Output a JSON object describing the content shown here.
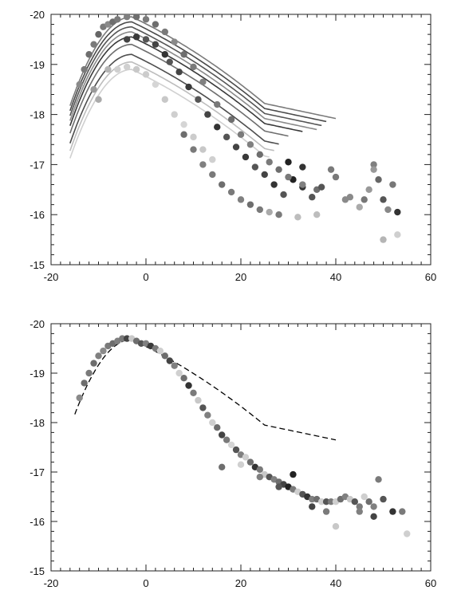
{
  "chart_data": [
    {
      "type": "scatter",
      "title": "",
      "xlabel": "",
      "ylabel": "",
      "xlim": [
        -20,
        60
      ],
      "ylim": [
        -20,
        -15
      ],
      "y_inverted": true,
      "grid": false,
      "x_ticks": [
        -20,
        0,
        20,
        40,
        60
      ],
      "y_ticks": [
        -20,
        -19,
        -18,
        -17,
        -16,
        -15
      ],
      "tick_labels_x": [
        "-20",
        "0",
        "20",
        "40",
        "60"
      ],
      "tick_labels_y": [
        "-20",
        "-19",
        "-18",
        "-17",
        "-16",
        "-15"
      ],
      "series_curves": [
        {
          "peak": -19.95,
          "color": "#7a7a7a",
          "end": 40
        },
        {
          "peak": -19.85,
          "color": "#4a4a4a",
          "end": 38
        },
        {
          "peak": -19.75,
          "color": "#555555",
          "end": 37
        },
        {
          "peak": -19.65,
          "color": "#8a8a8a",
          "end": 36
        },
        {
          "peak": -19.55,
          "color": "#3a3a3a",
          "end": 33
        },
        {
          "peak": -19.4,
          "color": "#6e6e6e",
          "end": 30
        },
        {
          "peak": -19.2,
          "color": "#4d4d4d",
          "end": 28
        },
        {
          "peak": -19.05,
          "color": "#bdbdbd",
          "end": 27
        },
        {
          "peak": -18.9,
          "color": "#d0d0d0",
          "end": 26
        }
      ],
      "points": [
        {
          "x": -14,
          "y": -18.6,
          "c": "#8a8a8a"
        },
        {
          "x": -13,
          "y": -18.9,
          "c": "#7a7a7a"
        },
        {
          "x": -12,
          "y": -19.2,
          "c": "#6e6e6e"
        },
        {
          "x": -11,
          "y": -19.4,
          "c": "#7a7a7a"
        },
        {
          "x": -10,
          "y": -19.6,
          "c": "#666666"
        },
        {
          "x": -9,
          "y": -19.75,
          "c": "#7a7a7a"
        },
        {
          "x": -8,
          "y": -19.8,
          "c": "#8a8a8a"
        },
        {
          "x": -7,
          "y": -19.85,
          "c": "#6e6e6e"
        },
        {
          "x": -6,
          "y": -19.9,
          "c": "#7a7a7a"
        },
        {
          "x": -4,
          "y": -19.95,
          "c": "#808080"
        },
        {
          "x": -2,
          "y": -19.95,
          "c": "#6e6e6e"
        },
        {
          "x": 0,
          "y": -19.9,
          "c": "#7a7a7a"
        },
        {
          "x": 2,
          "y": -19.8,
          "c": "#6e6e6e"
        },
        {
          "x": 4,
          "y": -19.65,
          "c": "#7a7a7a"
        },
        {
          "x": 6,
          "y": -19.45,
          "c": "#8a8a8a"
        },
        {
          "x": 8,
          "y": -19.2,
          "c": "#6e6e6e"
        },
        {
          "x": 10,
          "y": -18.95,
          "c": "#7a7a7a"
        },
        {
          "x": 12,
          "y": -18.65,
          "c": "#808080"
        },
        {
          "x": -11,
          "y": -18.5,
          "c": "#9a9a9a"
        },
        {
          "x": -10,
          "y": -18.3,
          "c": "#aaaaaa"
        },
        {
          "x": -8,
          "y": -18.9,
          "c": "#b5b5b5"
        },
        {
          "x": -6,
          "y": -18.9,
          "c": "#cfcfcf"
        },
        {
          "x": -4,
          "y": -18.95,
          "c": "#d0d0d0"
        },
        {
          "x": -2,
          "y": -18.9,
          "c": "#c8c8c8"
        },
        {
          "x": 0,
          "y": -18.8,
          "c": "#cccccc"
        },
        {
          "x": 2,
          "y": -18.6,
          "c": "#d5d5d5"
        },
        {
          "x": 4,
          "y": -18.3,
          "c": "#c8c8c8"
        },
        {
          "x": 6,
          "y": -18.0,
          "c": "#cfcfcf"
        },
        {
          "x": 8,
          "y": -17.8,
          "c": "#d5d5d5"
        },
        {
          "x": 10,
          "y": -17.55,
          "c": "#cccccc"
        },
        {
          "x": 12,
          "y": -17.3,
          "c": "#c8c8c8"
        },
        {
          "x": 14,
          "y": -17.1,
          "c": "#d0d0d0"
        },
        {
          "x": -4,
          "y": -19.5,
          "c": "#444444"
        },
        {
          "x": -2,
          "y": -19.55,
          "c": "#3a3a3a"
        },
        {
          "x": 0,
          "y": -19.5,
          "c": "#555555"
        },
        {
          "x": 2,
          "y": -19.4,
          "c": "#444444"
        },
        {
          "x": 4,
          "y": -19.2,
          "c": "#333333"
        },
        {
          "x": 5,
          "y": -19.05,
          "c": "#555555"
        },
        {
          "x": 7,
          "y": -18.85,
          "c": "#444444"
        },
        {
          "x": 9,
          "y": -18.55,
          "c": "#3a3a3a"
        },
        {
          "x": 11,
          "y": -18.3,
          "c": "#555555"
        },
        {
          "x": 13,
          "y": -18.0,
          "c": "#444444"
        },
        {
          "x": 15,
          "y": -17.75,
          "c": "#333333"
        },
        {
          "x": 17,
          "y": -17.55,
          "c": "#555555"
        },
        {
          "x": 19,
          "y": -17.35,
          "c": "#444444"
        },
        {
          "x": 21,
          "y": -17.15,
          "c": "#3a3a3a"
        },
        {
          "x": 23,
          "y": -16.95,
          "c": "#555555"
        },
        {
          "x": 25,
          "y": -16.8,
          "c": "#444444"
        },
        {
          "x": 27,
          "y": -16.6,
          "c": "#333333"
        },
        {
          "x": 29,
          "y": -16.4,
          "c": "#555555"
        },
        {
          "x": 31,
          "y": -16.7,
          "c": "#222222"
        },
        {
          "x": 33,
          "y": -16.55,
          "c": "#333333"
        },
        {
          "x": 35,
          "y": -16.35,
          "c": "#555555"
        },
        {
          "x": 15,
          "y": -18.2,
          "c": "#7a7a7a"
        },
        {
          "x": 18,
          "y": -17.9,
          "c": "#6e6e6e"
        },
        {
          "x": 20,
          "y": -17.6,
          "c": "#7a7a7a"
        },
        {
          "x": 22,
          "y": -17.4,
          "c": "#808080"
        },
        {
          "x": 24,
          "y": -17.2,
          "c": "#6e6e6e"
        },
        {
          "x": 26,
          "y": -17.05,
          "c": "#7a7a7a"
        },
        {
          "x": 28,
          "y": -16.9,
          "c": "#6e6e6e"
        },
        {
          "x": 30,
          "y": -16.75,
          "c": "#7a7a7a"
        },
        {
          "x": 33,
          "y": -16.6,
          "c": "#808080"
        },
        {
          "x": 36,
          "y": -16.5,
          "c": "#6e6e6e"
        },
        {
          "x": 39,
          "y": -16.9,
          "c": "#7a7a7a"
        },
        {
          "x": 42,
          "y": -16.3,
          "c": "#8a8a8a"
        },
        {
          "x": 30,
          "y": -17.05,
          "c": "#222222"
        },
        {
          "x": 33,
          "y": -16.95,
          "c": "#333333"
        },
        {
          "x": 37,
          "y": -16.55,
          "c": "#555555"
        },
        {
          "x": 40,
          "y": -16.75,
          "c": "#7a7a7a"
        },
        {
          "x": 43,
          "y": -16.35,
          "c": "#8a8a8a"
        },
        {
          "x": 45,
          "y": -16.15,
          "c": "#aaaaaa"
        },
        {
          "x": 46,
          "y": -16.3,
          "c": "#777777"
        },
        {
          "x": 47,
          "y": -16.5,
          "c": "#999999"
        },
        {
          "x": 48,
          "y": -17.0,
          "c": "#808080"
        },
        {
          "x": 49,
          "y": -16.7,
          "c": "#666666"
        },
        {
          "x": 50,
          "y": -16.3,
          "c": "#555555"
        },
        {
          "x": 51,
          "y": -16.1,
          "c": "#888888"
        },
        {
          "x": 52,
          "y": -16.6,
          "c": "#777777"
        },
        {
          "x": 53,
          "y": -16.05,
          "c": "#333333"
        },
        {
          "x": 50,
          "y": -15.5,
          "c": "#b5b5b5"
        },
        {
          "x": 53,
          "y": -15.6,
          "c": "#cfcfcf"
        },
        {
          "x": 48,
          "y": -16.9,
          "c": "#999999"
        },
        {
          "x": 8,
          "y": -17.6,
          "c": "#6e6e6e"
        },
        {
          "x": 10,
          "y": -17.3,
          "c": "#7a7a7a"
        },
        {
          "x": 12,
          "y": -17.0,
          "c": "#808080"
        },
        {
          "x": 14,
          "y": -16.8,
          "c": "#7a7a7a"
        },
        {
          "x": 16,
          "y": -16.6,
          "c": "#6e6e6e"
        },
        {
          "x": 18,
          "y": -16.45,
          "c": "#7a7a7a"
        },
        {
          "x": 20,
          "y": -16.3,
          "c": "#808080"
        },
        {
          "x": 22,
          "y": -16.2,
          "c": "#6e6e6e"
        },
        {
          "x": 24,
          "y": -16.1,
          "c": "#7a7a7a"
        },
        {
          "x": 26,
          "y": -16.05,
          "c": "#aaaaaa"
        },
        {
          "x": 28,
          "y": -16.0,
          "c": "#7a7a7a"
        },
        {
          "x": 32,
          "y": -15.95,
          "c": "#bdbdbd"
        },
        {
          "x": 36,
          "y": -16.0,
          "c": "#bdbdbd"
        }
      ]
    },
    {
      "type": "scatter",
      "title": "",
      "xlabel": "",
      "ylabel": "",
      "xlim": [
        -20,
        60
      ],
      "ylim": [
        -20,
        -15
      ],
      "y_inverted": true,
      "grid": false,
      "x_ticks": [
        -20,
        0,
        20,
        40,
        60
      ],
      "y_ticks": [
        -20,
        -19,
        -18,
        -17,
        -16,
        -15
      ],
      "tick_labels_x": [
        "-20",
        "0",
        "20",
        "40",
        "60"
      ],
      "tick_labels_y": [
        "-20",
        "-19",
        "-18",
        "-17",
        "-16",
        "-15"
      ],
      "template_curve": {
        "style": "dashed",
        "color": "#000000",
        "x_from": -15,
        "x_to": 40
      },
      "points": [
        {
          "x": -14,
          "y": -18.5,
          "c": "#8a8a8a"
        },
        {
          "x": -13,
          "y": -18.8,
          "c": "#6e6e6e"
        },
        {
          "x": -12,
          "y": -19.0,
          "c": "#7a7a7a"
        },
        {
          "x": -11,
          "y": -19.2,
          "c": "#6e6e6e"
        },
        {
          "x": -10,
          "y": -19.35,
          "c": "#808080"
        },
        {
          "x": -9,
          "y": -19.45,
          "c": "#8a8a8a"
        },
        {
          "x": -8,
          "y": -19.55,
          "c": "#7a7a7a"
        },
        {
          "x": -7,
          "y": -19.6,
          "c": "#6e6e6e"
        },
        {
          "x": -6,
          "y": -19.65,
          "c": "#808080"
        },
        {
          "x": -5,
          "y": -19.7,
          "c": "#7a7a7a"
        },
        {
          "x": -4,
          "y": -19.7,
          "c": "#444444"
        },
        {
          "x": -3,
          "y": -19.7,
          "c": "#c8c8c8"
        },
        {
          "x": -2,
          "y": -19.65,
          "c": "#6e6e6e"
        },
        {
          "x": -1,
          "y": -19.6,
          "c": "#555555"
        },
        {
          "x": 0,
          "y": -19.6,
          "c": "#808080"
        },
        {
          "x": 1,
          "y": -19.55,
          "c": "#3a3a3a"
        },
        {
          "x": 2,
          "y": -19.5,
          "c": "#7a7a7a"
        },
        {
          "x": 3,
          "y": -19.45,
          "c": "#cfcfcf"
        },
        {
          "x": 4,
          "y": -19.35,
          "c": "#6e6e6e"
        },
        {
          "x": 5,
          "y": -19.25,
          "c": "#444444"
        },
        {
          "x": 6,
          "y": -19.15,
          "c": "#808080"
        },
        {
          "x": 7,
          "y": -19.0,
          "c": "#d0d0d0"
        },
        {
          "x": 8,
          "y": -18.9,
          "c": "#6e6e6e"
        },
        {
          "x": 9,
          "y": -18.75,
          "c": "#333333"
        },
        {
          "x": 10,
          "y": -18.6,
          "c": "#7a7a7a"
        },
        {
          "x": 11,
          "y": -18.45,
          "c": "#c8c8c8"
        },
        {
          "x": 12,
          "y": -18.3,
          "c": "#555555"
        },
        {
          "x": 13,
          "y": -18.15,
          "c": "#808080"
        },
        {
          "x": 14,
          "y": -18.0,
          "c": "#cfcfcf"
        },
        {
          "x": 15,
          "y": -17.9,
          "c": "#6e6e6e"
        },
        {
          "x": 16,
          "y": -17.75,
          "c": "#444444"
        },
        {
          "x": 17,
          "y": -17.65,
          "c": "#7a7a7a"
        },
        {
          "x": 18,
          "y": -17.55,
          "c": "#d5d5d5"
        },
        {
          "x": 19,
          "y": -17.45,
          "c": "#555555"
        },
        {
          "x": 20,
          "y": -17.35,
          "c": "#808080"
        },
        {
          "x": 21,
          "y": -17.3,
          "c": "#cfcfcf"
        },
        {
          "x": 22,
          "y": -17.2,
          "c": "#6e6e6e"
        },
        {
          "x": 23,
          "y": -17.1,
          "c": "#333333"
        },
        {
          "x": 24,
          "y": -17.05,
          "c": "#7a7a7a"
        },
        {
          "x": 25,
          "y": -16.95,
          "c": "#c8c8c8"
        },
        {
          "x": 26,
          "y": -16.9,
          "c": "#555555"
        },
        {
          "x": 27,
          "y": -16.85,
          "c": "#808080"
        },
        {
          "x": 28,
          "y": -16.8,
          "c": "#6e6e6e"
        },
        {
          "x": 29,
          "y": -16.75,
          "c": "#444444"
        },
        {
          "x": 30,
          "y": -16.7,
          "c": "#222222"
        },
        {
          "x": 31,
          "y": -16.65,
          "c": "#7a7a7a"
        },
        {
          "x": 32,
          "y": -16.6,
          "c": "#cfcfcf"
        },
        {
          "x": 33,
          "y": -16.55,
          "c": "#555555"
        },
        {
          "x": 34,
          "y": -16.5,
          "c": "#333333"
        },
        {
          "x": 35,
          "y": -16.45,
          "c": "#808080"
        },
        {
          "x": 36,
          "y": -16.45,
          "c": "#6e6e6e"
        },
        {
          "x": 37,
          "y": -16.4,
          "c": "#d0d0d0"
        },
        {
          "x": 38,
          "y": -16.4,
          "c": "#555555"
        },
        {
          "x": 39,
          "y": -16.4,
          "c": "#7a7a7a"
        },
        {
          "x": 40,
          "y": -16.4,
          "c": "#cfcfcf"
        },
        {
          "x": 41,
          "y": -16.45,
          "c": "#6e6e6e"
        },
        {
          "x": 42,
          "y": -16.5,
          "c": "#808080"
        },
        {
          "x": 43,
          "y": -16.45,
          "c": "#c8c8c8"
        },
        {
          "x": 44,
          "y": -16.4,
          "c": "#555555"
        },
        {
          "x": 45,
          "y": -16.3,
          "c": "#7a7a7a"
        },
        {
          "x": 46,
          "y": -16.5,
          "c": "#cfcfcf"
        },
        {
          "x": 47,
          "y": -16.4,
          "c": "#6e6e6e"
        },
        {
          "x": 48,
          "y": -16.3,
          "c": "#808080"
        },
        {
          "x": 49,
          "y": -16.85,
          "c": "#7a7a7a"
        },
        {
          "x": 50,
          "y": -16.45,
          "c": "#555555"
        },
        {
          "x": 52,
          "y": -16.2,
          "c": "#333333"
        },
        {
          "x": 54,
          "y": -16.2,
          "c": "#7a7a7a"
        },
        {
          "x": 55,
          "y": -15.75,
          "c": "#cfcfcf"
        },
        {
          "x": 31,
          "y": -16.95,
          "c": "#222222"
        },
        {
          "x": 35,
          "y": -16.3,
          "c": "#444444"
        },
        {
          "x": 38,
          "y": -16.2,
          "c": "#7a7a7a"
        },
        {
          "x": 40,
          "y": -15.9,
          "c": "#c8c8c8"
        },
        {
          "x": 45,
          "y": -16.2,
          "c": "#808080"
        },
        {
          "x": 48,
          "y": -16.1,
          "c": "#444444"
        },
        {
          "x": 16,
          "y": -17.1,
          "c": "#6e6e6e"
        },
        {
          "x": 20,
          "y": -17.15,
          "c": "#d0d0d0"
        },
        {
          "x": 24,
          "y": -16.9,
          "c": "#808080"
        },
        {
          "x": 28,
          "y": -16.7,
          "c": "#555555"
        }
      ]
    }
  ]
}
